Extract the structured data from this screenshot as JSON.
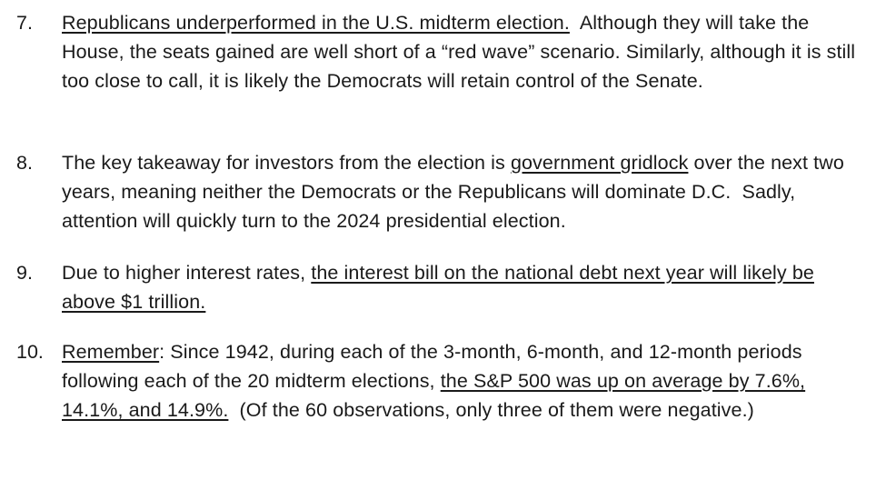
{
  "items": [
    {
      "number": "7.",
      "lead_underlined": "Republicans underperformed in the U.S. midterm election.",
      "rest": "  Although they will take the House, the seats gained are well short of a “red wave” scenario. Similarly, although it is still too close to call, it is likely the Democrats will retain control of the Senate."
    },
    {
      "number": "8.",
      "before": "The key takeaway for investors from the election is ",
      "underlined": "government gridlock",
      "after": " over the next two years, meaning neither the Democrats or the Republicans will dominate D.C.  Sadly, attention will quickly turn to the 2024 presidential election."
    },
    {
      "number": "9.",
      "before": "Due to higher interest rates, ",
      "underlined": "the interest bill on the national debt next year will likely be above $1 trillion."
    },
    {
      "number": "10.",
      "lead_underlined": "Remember",
      "middle": ": Since 1942, during each of the 3-month, 6-month, and 12-month periods following each of the 20 midterm elections, ",
      "underlined": "the S&P 500 was up on average by 7.6%, 14.1%, and 14.9%.",
      "after": "  (Of the 60 observations, only three of them were negative.)"
    }
  ]
}
